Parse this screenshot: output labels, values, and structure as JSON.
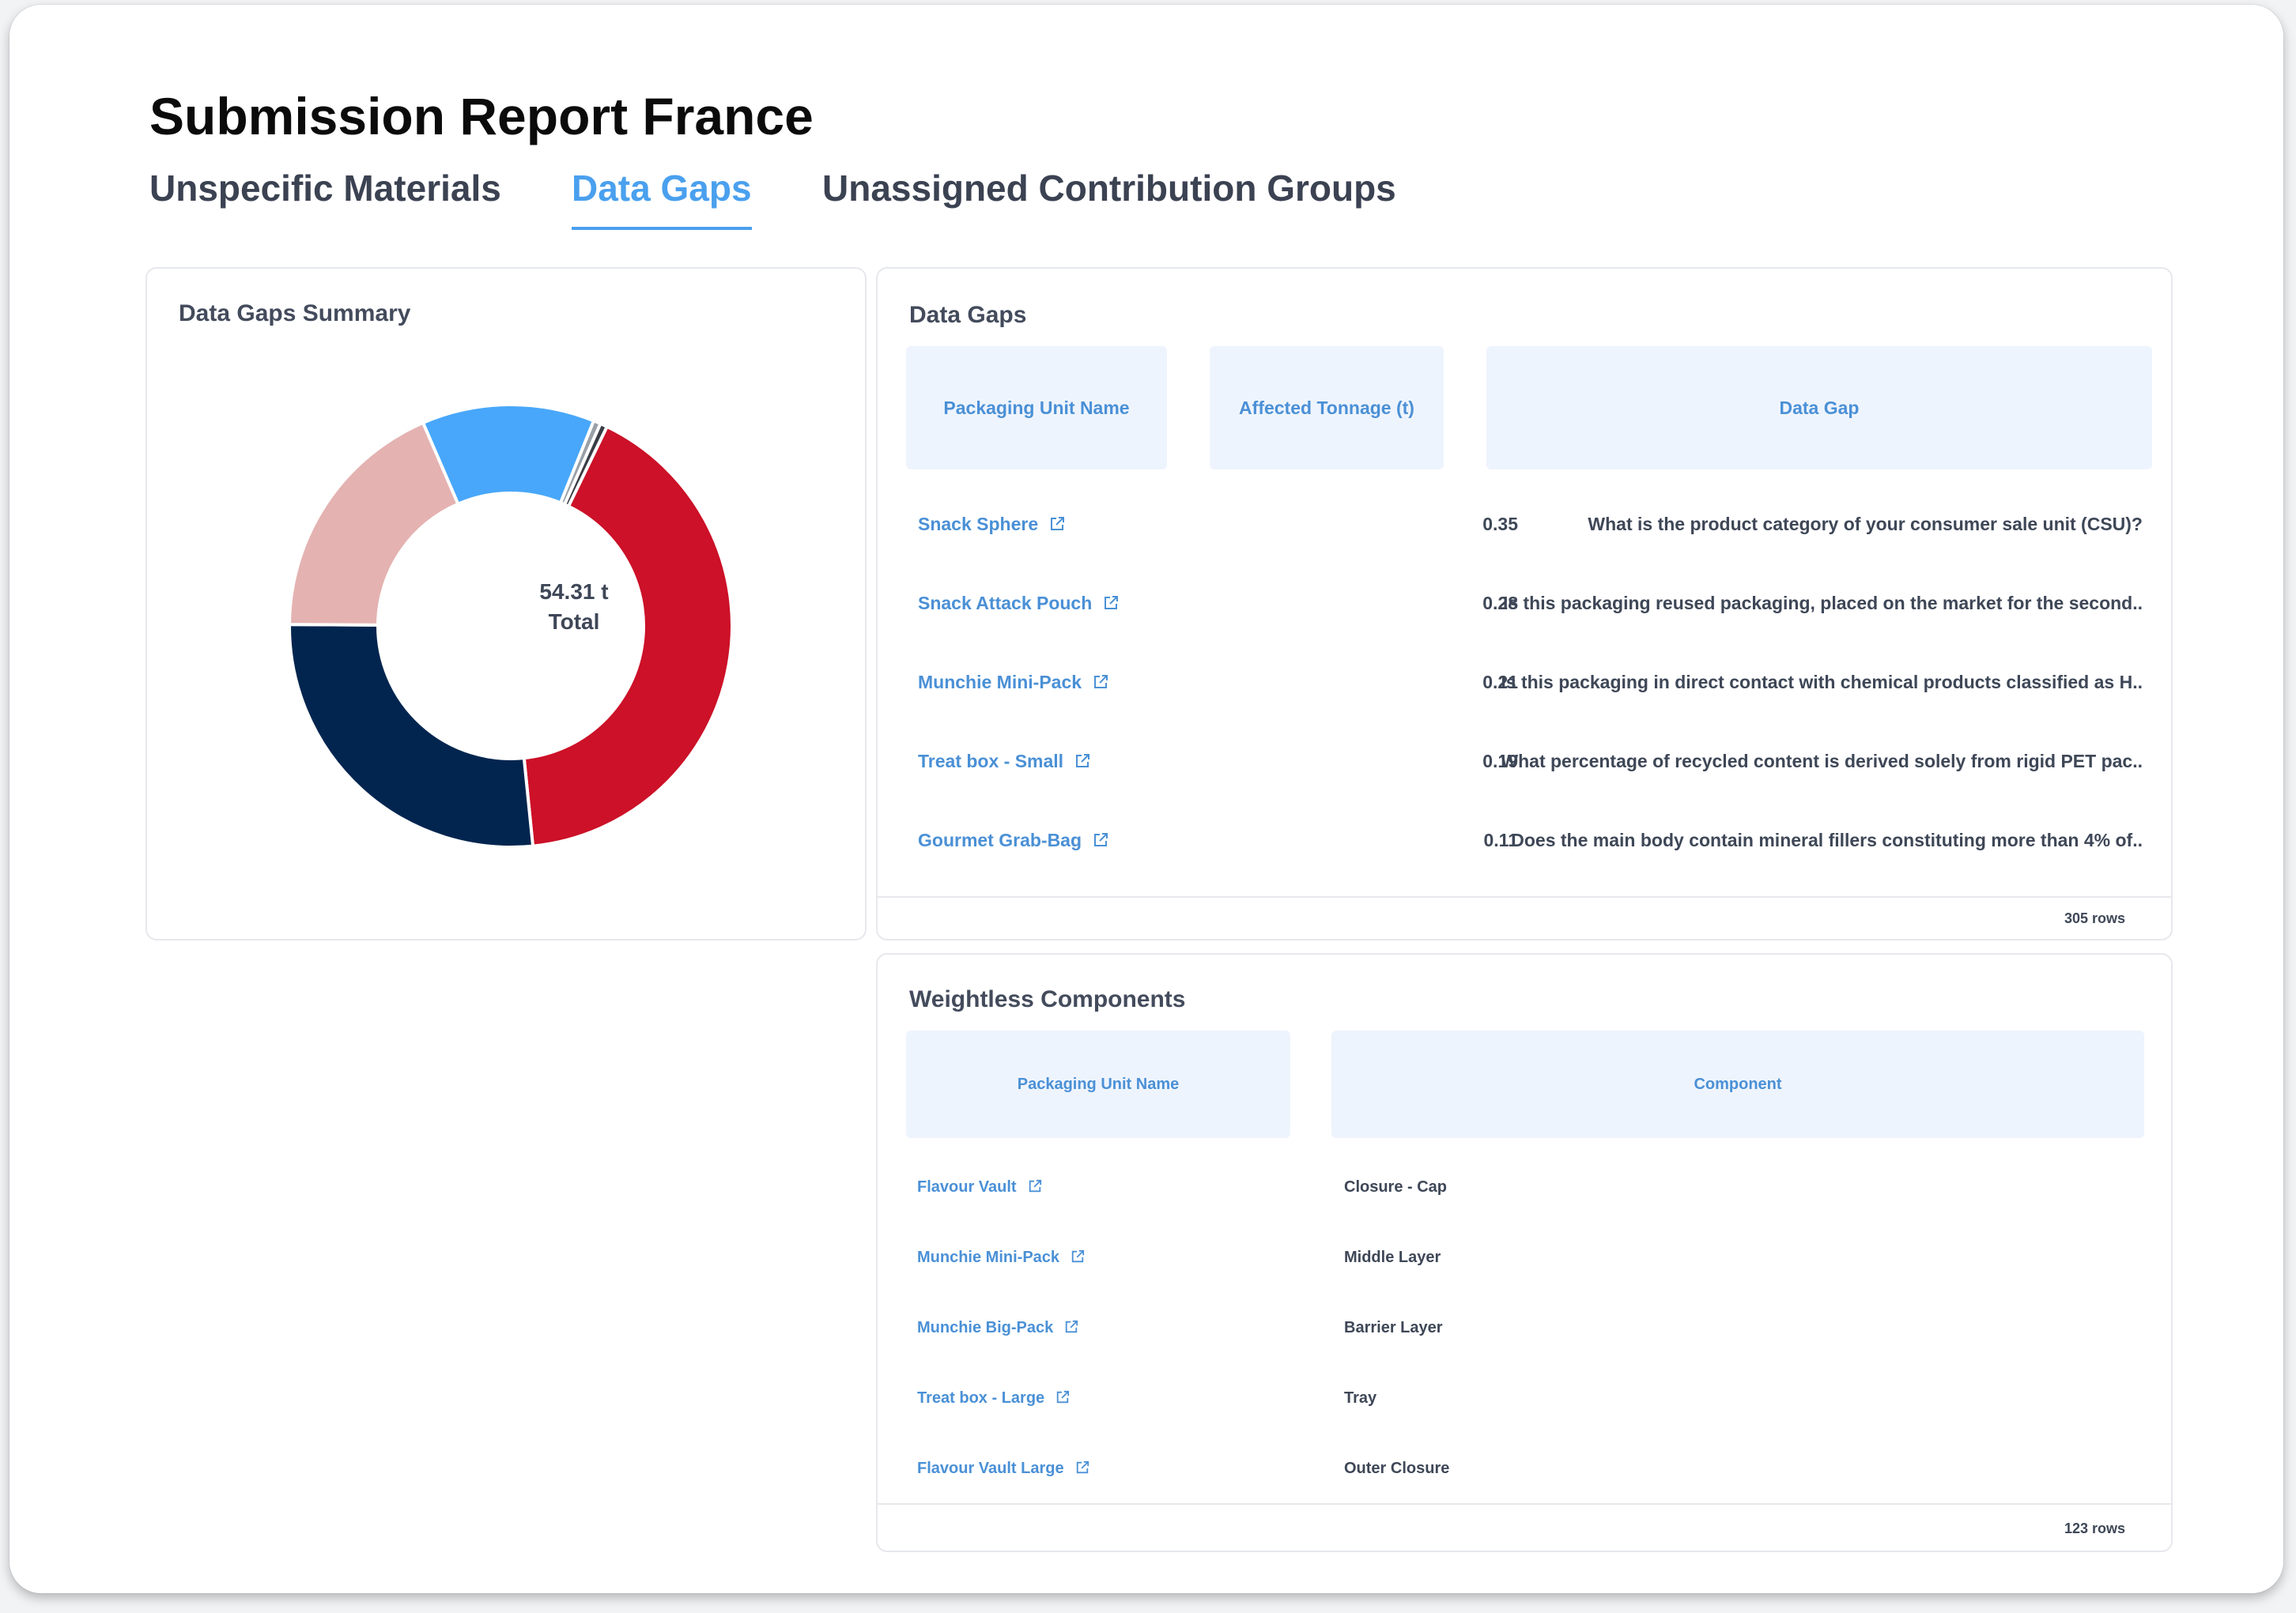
{
  "page": {
    "title": "Submission Report France"
  },
  "tabs": [
    {
      "label": "Unspecific Materials",
      "active": false
    },
    {
      "label": "Data Gaps",
      "active": true
    },
    {
      "label": "Unassigned Contribution Groups",
      "active": false
    }
  ],
  "summary": {
    "title": "Data Gaps Summary",
    "center_value": "54.31 t",
    "center_label": "Total"
  },
  "chart_data": {
    "type": "pie",
    "subtype": "donut",
    "total": 54.31,
    "unit": "t",
    "slices": [
      {
        "value": 0.29,
        "color": "#9aa0a8"
      },
      {
        "value": 0.28,
        "color": "#3a3d45"
      },
      {
        "value": 22.4,
        "color": "#cc1128"
      },
      {
        "value": 14.5,
        "color": "#02254f"
      },
      {
        "value": 10.0,
        "color": "#e4b2b1"
      },
      {
        "value": 6.84,
        "color": "#48a7fa"
      }
    ]
  },
  "data_gaps": {
    "title": "Data Gaps",
    "columns": [
      "Packaging Unit Name",
      "Affected Tonnage (t)",
      "Data Gap"
    ],
    "rows": [
      {
        "name": "Snack Sphere",
        "tonnage": "0.35",
        "gap": "What is the product category of your consumer sale unit (CSU)?"
      },
      {
        "name": "Snack Attack Pouch",
        "tonnage": "0.28",
        "gap": "Is this packaging reused packaging, placed on the market for the second.."
      },
      {
        "name": "Munchie Mini-Pack",
        "tonnage": "0.21",
        "gap": "Is this packaging in direct contact with chemical products classified as H.."
      },
      {
        "name": "Treat box - Small",
        "tonnage": "0.19",
        "gap": "What percentage of recycled content is derived solely from rigid PET pac.."
      },
      {
        "name": "Gourmet Grab-Bag",
        "tonnage": "0.11",
        "gap": "Does the main body contain mineral fillers constituting more than 4% of.."
      }
    ],
    "row_count": "305 rows"
  },
  "weightless": {
    "title": "Weightless Components",
    "columns": [
      "Packaging Unit Name",
      "Component"
    ],
    "rows": [
      {
        "name": "Flavour Vault",
        "component": "Closure - Cap"
      },
      {
        "name": "Munchie Mini-Pack",
        "component": "Middle Layer"
      },
      {
        "name": "Munchie Big-Pack",
        "component": "Barrier Layer"
      },
      {
        "name": "Treat box - Large",
        "component": "Tray"
      },
      {
        "name": "Flavour Vault Large",
        "component": "Outer Closure"
      }
    ],
    "row_count": "123 rows"
  },
  "colors": {
    "accent": "#4aa0ee",
    "link": "#4a90d6",
    "header_bg": "#eef4fd"
  }
}
